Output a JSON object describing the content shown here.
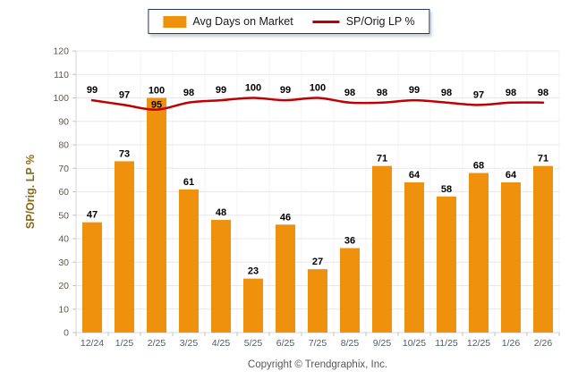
{
  "legend": {
    "items": [
      {
        "label": "Avg Days on Market",
        "type": "bar",
        "color": "#F0910D"
      },
      {
        "label": "SP/Orig LP %",
        "type": "line",
        "color": "#C00000"
      }
    ]
  },
  "chart_data": {
    "type": "bar",
    "combo": "bar+line",
    "categories": [
      "12/24",
      "1/25",
      "2/25",
      "3/25",
      "4/25",
      "5/25",
      "6/25",
      "7/25",
      "8/25",
      "9/25",
      "10/25",
      "11/25",
      "12/25",
      "1/26",
      "2/26"
    ],
    "series": [
      {
        "name": "Avg Days on Market",
        "type": "bar",
        "color": "#F0910D",
        "values": [
          47,
          73,
          100,
          61,
          48,
          23,
          46,
          27,
          36,
          71,
          64,
          58,
          68,
          64,
          71
        ]
      },
      {
        "name": "SP/Orig LP %",
        "type": "line",
        "color": "#C00000",
        "values": [
          99,
          97,
          95,
          98,
          99,
          100,
          99,
          100,
          98,
          98,
          99,
          98,
          97,
          98,
          98
        ]
      }
    ],
    "title": "",
    "xlabel": "",
    "ylabel": "SP/Orig. LP %",
    "ylim": [
      0,
      120
    ],
    "yticks": [
      0,
      10,
      20,
      30,
      40,
      50,
      60,
      70,
      80,
      90,
      100,
      110,
      120
    ],
    "grid": true,
    "value_labels": true,
    "legend_position": "top"
  },
  "colors": {
    "bar": "#F0910D",
    "line": "#C00000",
    "value_label": "#000000",
    "y_axis_title": "#8A6A15",
    "y_tick_label": "#5E584E",
    "x_tick_label": "#505A68",
    "grid_h": "#E8E8E8",
    "grid_v": "#F3F3F3",
    "axis": "#D5D5D5",
    "tick": "#C2C2C2",
    "legend_border": "#1F3864",
    "copyright": "#595959"
  },
  "footer": {
    "copyright": "Copyright © Trendgraphix, Inc."
  }
}
